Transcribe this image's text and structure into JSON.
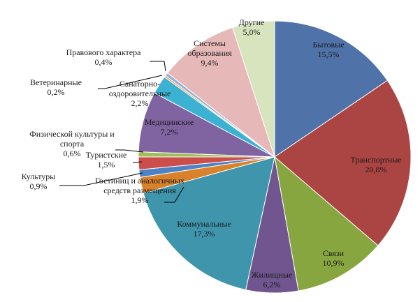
{
  "chart_data": {
    "type": "pie",
    "slices": [
      {
        "name": "Бытовые",
        "value": 15.5,
        "pct": "15,5%",
        "color": "#4f72a9"
      },
      {
        "name": "Транспортные",
        "value": 20.8,
        "pct": "20,8%",
        "color": "#ab4543"
      },
      {
        "name": "Связи",
        "value": 10.9,
        "pct": "10,9%",
        "color": "#88a63f"
      },
      {
        "name": "Жилищные",
        "value": 6.2,
        "pct": "6,2%",
        "color": "#70558e"
      },
      {
        "name": "Коммунальные",
        "value": 17.3,
        "pct": "17,3%",
        "color": "#3e95ac"
      },
      {
        "name": "Гостиниц и аналогичных средств размещения",
        "value": 1.9,
        "pct": "1,9%",
        "color": "#d9822b"
      },
      {
        "name": "Культуры",
        "value": 0.9,
        "pct": "0,9%",
        "color": "#4d82c4"
      },
      {
        "name": "Туристские",
        "value": 1.5,
        "pct": "1,5%",
        "color": "#cc4e4b"
      },
      {
        "name": "Физической культуры и спорта",
        "value": 0.6,
        "pct": "0,6%",
        "color": "#9fbf5a"
      },
      {
        "name": "Медицинские",
        "value": 7.2,
        "pct": "7,2%",
        "color": "#8064a2"
      },
      {
        "name": "Санаторно-оздоровительные",
        "value": 2.2,
        "pct": "2,2%",
        "color": "#3cb2d3"
      },
      {
        "name": "Ветеринарные",
        "value": 0.2,
        "pct": "0,2%",
        "color": "#f79646"
      },
      {
        "name": "Правового характера",
        "value": 0.4,
        "pct": "0,4%",
        "color": "#95b3d7"
      },
      {
        "name": "Системы образования",
        "value": 9.4,
        "pct": "9,4%",
        "color": "#e6b9b8"
      },
      {
        "name": "Другие",
        "value": 5.0,
        "pct": "5,0%",
        "color": "#d7e4bd"
      }
    ],
    "title": "",
    "legend": "none",
    "labels": "data labels with leader lines"
  }
}
